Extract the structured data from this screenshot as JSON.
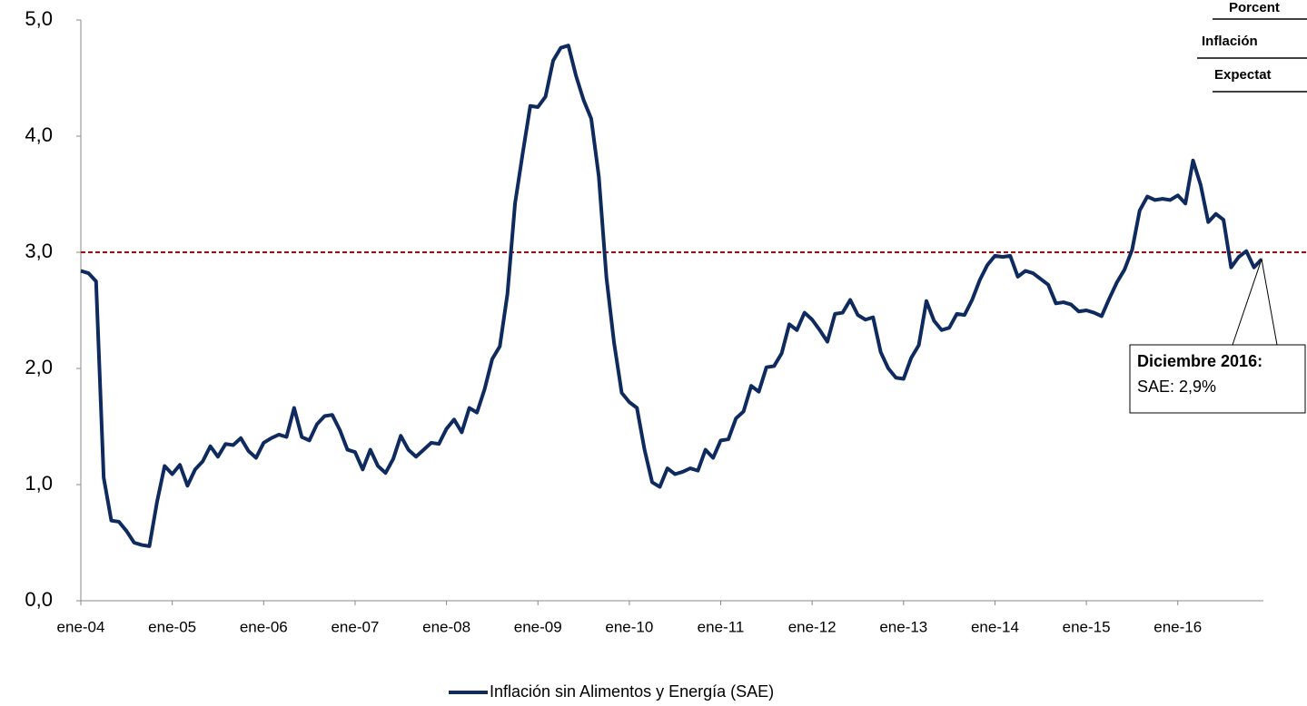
{
  "chart_data": {
    "type": "line",
    "categories": [
      "ene-04",
      null,
      null,
      null,
      null,
      null,
      null,
      null,
      null,
      null,
      null,
      null,
      "ene-05",
      null,
      null,
      null,
      null,
      null,
      null,
      null,
      null,
      null,
      null,
      null,
      "ene-06",
      null,
      null,
      null,
      null,
      null,
      null,
      null,
      null,
      null,
      null,
      null,
      "ene-07",
      null,
      null,
      null,
      null,
      null,
      null,
      null,
      null,
      null,
      null,
      null,
      "ene-08",
      null,
      null,
      null,
      null,
      null,
      null,
      null,
      null,
      null,
      null,
      null,
      "ene-09",
      null,
      null,
      null,
      null,
      null,
      null,
      null,
      null,
      null,
      null,
      null,
      "ene-10",
      null,
      null,
      null,
      null,
      null,
      null,
      null,
      null,
      null,
      null,
      null,
      "ene-11",
      null,
      null,
      null,
      null,
      null,
      null,
      null,
      null,
      null,
      null,
      null,
      "ene-12",
      null,
      null,
      null,
      null,
      null,
      null,
      null,
      null,
      null,
      null,
      null,
      "ene-13",
      null,
      null,
      null,
      null,
      null,
      null,
      null,
      null,
      null,
      null,
      null,
      "ene-14",
      null,
      null,
      null,
      null,
      null,
      null,
      null,
      null,
      null,
      null,
      null,
      "ene-15",
      null,
      null,
      null,
      null,
      null,
      null,
      null,
      null,
      null,
      null,
      null,
      "ene-16",
      null,
      null,
      null,
      null,
      null,
      null,
      null,
      null,
      null,
      null,
      null
    ],
    "series": [
      {
        "name": "Inflación sin Alimentos y Energía (SAE)",
        "color": "#0f2a5e",
        "values": [
          2.84,
          2.82,
          2.75,
          1.06,
          0.69,
          0.68,
          0.6,
          0.5,
          0.48,
          0.47,
          0.85,
          1.16,
          1.09,
          1.17,
          0.99,
          1.13,
          1.2,
          1.33,
          1.24,
          1.35,
          1.34,
          1.4,
          1.29,
          1.23,
          1.36,
          1.4,
          1.43,
          1.41,
          1.66,
          1.41,
          1.38,
          1.52,
          1.59,
          1.6,
          1.47,
          1.3,
          1.28,
          1.13,
          1.3,
          1.16,
          1.1,
          1.22,
          1.42,
          1.3,
          1.24,
          1.3,
          1.36,
          1.35,
          1.48,
          1.56,
          1.45,
          1.66,
          1.62,
          1.82,
          2.08,
          2.19,
          2.64,
          3.42,
          3.85,
          4.26,
          4.25,
          4.34,
          4.65,
          4.76,
          4.78,
          4.52,
          4.31,
          4.15,
          3.65,
          2.78,
          2.22,
          1.79,
          1.71,
          1.66,
          1.3,
          1.02,
          0.98,
          1.14,
          1.09,
          1.11,
          1.14,
          1.12,
          1.3,
          1.23,
          1.38,
          1.39,
          1.57,
          1.63,
          1.85,
          1.8,
          2.01,
          2.02,
          2.13,
          2.38,
          2.33,
          2.48,
          2.42,
          2.33,
          2.23,
          2.47,
          2.48,
          2.59,
          2.46,
          2.42,
          2.44,
          2.14,
          2.0,
          1.92,
          1.91,
          2.09,
          2.2,
          2.58,
          2.41,
          2.33,
          2.35,
          2.47,
          2.46,
          2.59,
          2.76,
          2.89,
          2.97,
          2.96,
          2.97,
          2.79,
          2.84,
          2.82,
          2.77,
          2.72,
          2.56,
          2.57,
          2.55,
          2.49,
          2.5,
          2.48,
          2.45,
          2.6,
          2.74,
          2.85,
          3.02,
          3.36,
          3.48,
          3.45,
          3.46,
          3.45,
          3.49,
          3.42,
          3.79,
          3.58,
          3.26,
          3.33,
          3.28,
          2.87,
          2.96,
          3.01,
          2.87,
          2.94
        ]
      }
    ],
    "reference_line": {
      "value": 3,
      "color": "#c00000"
    },
    "ylim": [
      0,
      5
    ],
    "yticks": [
      {
        "value": 0,
        "label": "0,0"
      },
      {
        "value": 1,
        "label": "1,0"
      },
      {
        "value": 2,
        "label": "2,0"
      },
      {
        "value": 3,
        "label": "3,0"
      },
      {
        "value": 4,
        "label": "4,0"
      },
      {
        "value": 5,
        "label": "5,0"
      }
    ],
    "annotation": {
      "title": "Diciembre 2016:",
      "text": "SAE: 2,9%"
    },
    "table_fragment": [
      "Porcent",
      "Inflación",
      "Expectat"
    ],
    "grid": false
  }
}
